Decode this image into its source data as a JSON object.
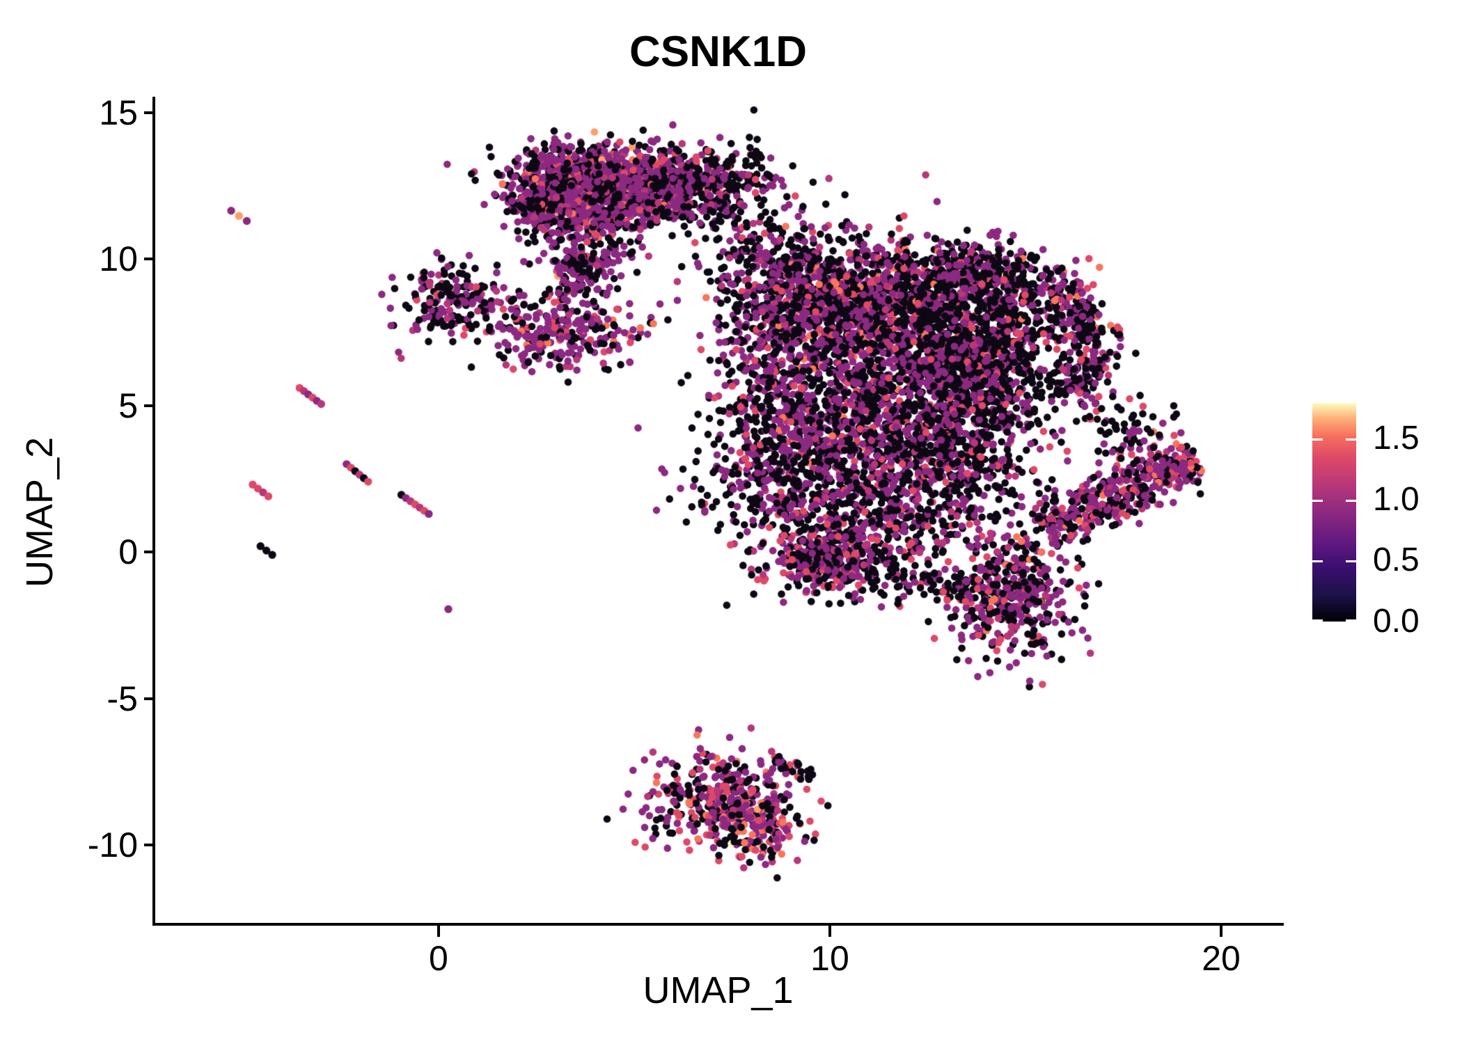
{
  "chart_data": {
    "type": "scatter",
    "title": "CSNK1D",
    "xlabel": "UMAP_1",
    "ylabel": "UMAP_2",
    "x_range": [
      -7.24,
      21.53
    ],
    "y_range": [
      -12.66,
      15.54
    ],
    "x_ticks": [
      {
        "value": 0,
        "label": "0"
      },
      {
        "value": 10,
        "label": "10"
      },
      {
        "value": 20,
        "label": "20"
      }
    ],
    "y_ticks": [
      {
        "value": 15,
        "label": "15"
      },
      {
        "value": 10,
        "label": "10"
      },
      {
        "value": 5,
        "label": "5"
      },
      {
        "value": 0,
        "label": "0"
      },
      {
        "value": -5,
        "label": "-5"
      },
      {
        "value": -10,
        "label": "-10"
      }
    ],
    "grid": false,
    "legend_position": "right",
    "legend": {
      "colormap": "magma",
      "domain": [
        0,
        1.79
      ],
      "ticks": [
        {
          "value": 0.0,
          "label": "0.0"
        },
        {
          "value": 0.5,
          "label": "0.5"
        },
        {
          "value": 1.0,
          "label": "1.0"
        },
        {
          "value": 1.5,
          "label": "1.5"
        }
      ],
      "gradient": [
        [
          0,
          "#000004"
        ],
        [
          0.12,
          "#1d1147"
        ],
        [
          0.25,
          "#3b0f70"
        ],
        [
          0.37,
          "#641a80"
        ],
        [
          0.5,
          "#8c2981"
        ],
        [
          0.62,
          "#b73779"
        ],
        [
          0.75,
          "#de4968"
        ],
        [
          0.85,
          "#f7705c"
        ],
        [
          0.93,
          "#feb078"
        ],
        [
          1,
          "#fcfdbf"
        ]
      ]
    },
    "point_radius_px": 5.3,
    "palette": {
      "black": "#0d0814",
      "indigo": "#4a1079",
      "purple": "#8c2981",
      "magenta": "#b73779",
      "pink": "#de4968",
      "salmon": "#f8765c",
      "orange": "#fc9f6d",
      "cream": "#fcfdbf"
    },
    "mixes": {
      "top": {
        "black": 40,
        "purple": 44,
        "magenta": 7,
        "pink": 6,
        "salmon": 2,
        "orange": 1
      },
      "top2": {
        "black": 34,
        "purple": 50,
        "magenta": 7,
        "pink": 6,
        "salmon": 2,
        "orange": 1
      },
      "sparseDark": {
        "black": 62,
        "purple": 30,
        "magenta": 4,
        "pink": 4
      },
      "leftA": {
        "black": 48,
        "purple": 36,
        "magenta": 8,
        "pink": 8
      },
      "leftB": {
        "black": 28,
        "purple": 48,
        "magenta": 10,
        "pink": 10,
        "salmon": 4
      },
      "mixA": {
        "black": 46,
        "purple": 38,
        "magenta": 7,
        "pink": 7,
        "salmon": 2
      },
      "darkA": {
        "black": 58,
        "purple": 26,
        "magenta": 6,
        "pink": 8,
        "salmon": 2
      },
      "darkB": {
        "black": 70,
        "purple": 21,
        "magenta": 4,
        "pink": 5
      },
      "darkC": {
        "black": 54,
        "purple": 33,
        "magenta": 6,
        "pink": 7
      },
      "lobeA": {
        "black": 42,
        "purple": 42,
        "magenta": 8,
        "pink": 8
      },
      "lobeB": {
        "black": 46,
        "purple": 36,
        "magenta": 7,
        "pink": 9,
        "salmon": 2
      },
      "hook": {
        "black": 55,
        "purple": 35,
        "magenta": 3,
        "pink": 5,
        "salmon": 2
      },
      "neck": {
        "black": 70,
        "purple": 25,
        "pink": 5
      },
      "wing": {
        "black": 33,
        "purple": 42,
        "magenta": 12,
        "pink": 10,
        "salmon": 3
      },
      "bottom": {
        "black": 30,
        "purple": 34,
        "magenta": 12,
        "pink": 14,
        "salmon": 8,
        "orange": 2
      },
      "bottomTip": {
        "black": 21,
        "purple": 30,
        "magenta": 14,
        "pink": 16,
        "salmon": 14,
        "orange": 4,
        "cream": 1
      },
      "tail": {
        "black": 60,
        "purple": 25,
        "pink": 15
      }
    },
    "clusters": [
      {
        "name": "top-main-west",
        "type": "gauss",
        "cx": 3.5,
        "cy": 12.9,
        "sdx": 1.0,
        "sdy": 0.55,
        "n": 480,
        "mix": "top"
      },
      {
        "name": "top-main-east",
        "type": "gauss",
        "cx": 5.5,
        "cy": 12.5,
        "sdx": 1.0,
        "sdy": 0.6,
        "n": 430,
        "mix": "top"
      },
      {
        "name": "top-core",
        "type": "gauss",
        "cx": 4.4,
        "cy": 12.0,
        "sdx": 1.2,
        "sdy": 0.6,
        "n": 380,
        "mix": "top2"
      },
      {
        "name": "top-left-tip",
        "type": "gauss",
        "cx": 2.8,
        "cy": 11.7,
        "sdx": 0.55,
        "sdy": 0.5,
        "n": 150,
        "mix": "top"
      },
      {
        "name": "top-right-spray",
        "type": "gauss",
        "cx": 6.7,
        "cy": 12.4,
        "sdx": 0.85,
        "sdy": 0.75,
        "n": 140,
        "mix": "sparseDark"
      },
      {
        "name": "top-ne-spray",
        "type": "gauss",
        "cx": 7.9,
        "cy": 12.9,
        "sdx": 0.75,
        "sdy": 0.6,
        "n": 60,
        "mix": "sparseDark"
      },
      {
        "name": "top-tail",
        "type": "gauss",
        "cx": 3.9,
        "cy": 10.4,
        "sdx": 0.55,
        "sdy": 0.8,
        "n": 150,
        "mix": "top2"
      },
      {
        "name": "top-tail-sparse",
        "type": "gauss",
        "cx": 3.4,
        "cy": 9.4,
        "sdx": 0.5,
        "sdy": 0.55,
        "n": 70,
        "mix": "top2"
      },
      {
        "name": "left-blob",
        "type": "gauss",
        "cx": 0.35,
        "cy": 8.6,
        "sdx": 0.72,
        "sdy": 0.72,
        "n": 180,
        "mix": "leftA"
      },
      {
        "name": "mid-blob",
        "type": "gauss",
        "cx": 3.3,
        "cy": 7.5,
        "sdx": 1.0,
        "sdy": 0.62,
        "n": 260,
        "mix": "leftB"
      },
      {
        "name": "bridge",
        "type": "gauss",
        "cx": 8.3,
        "cy": 10.4,
        "sdx": 0.8,
        "sdy": 0.7,
        "n": 110,
        "mix": "sparseDark"
      },
      {
        "name": "main-nw",
        "type": "gauss",
        "cx": 9.6,
        "cy": 8.7,
        "sdx": 1.15,
        "sdy": 1.0,
        "n": 620,
        "mix": "mixA"
      },
      {
        "name": "main-n",
        "type": "gauss",
        "cx": 12.1,
        "cy": 8.7,
        "sdx": 1.5,
        "sdy": 1.05,
        "n": 900,
        "mix": "darkA"
      },
      {
        "name": "main-core-e",
        "type": "gauss",
        "cx": 13.8,
        "cy": 6.3,
        "sdx": 1.05,
        "sdy": 1.3,
        "n": 850,
        "mix": "darkB"
      },
      {
        "name": "main-center",
        "type": "gauss",
        "cx": 11.0,
        "cy": 5.7,
        "sdx": 1.6,
        "sdy": 1.35,
        "n": 900,
        "mix": "mixA"
      },
      {
        "name": "main-w-edge",
        "type": "gauss",
        "cx": 8.5,
        "cy": 6.2,
        "sdx": 0.65,
        "sdy": 1.5,
        "n": 200,
        "mix": "darkC"
      },
      {
        "name": "main-sw-spray",
        "type": "gauss",
        "cx": 7.9,
        "cy": 3.0,
        "sdx": 0.85,
        "sdy": 1.5,
        "n": 140,
        "mix": "sparseDark"
      },
      {
        "name": "main-s-center",
        "type": "gauss",
        "cx": 9.4,
        "cy": 3.1,
        "sdx": 0.95,
        "sdy": 1.1,
        "n": 320,
        "mix": "mixA"
      },
      {
        "name": "main-se-fill",
        "type": "gauss",
        "cx": 12.7,
        "cy": 3.3,
        "sdx": 1.35,
        "sdy": 0.95,
        "n": 470,
        "mix": "darkC"
      },
      {
        "name": "main-s",
        "type": "gauss",
        "cx": 11.4,
        "cy": 1.3,
        "sdx": 1.5,
        "sdy": 0.95,
        "n": 430,
        "mix": "darkC"
      },
      {
        "name": "sw-lobe",
        "type": "gauss",
        "cx": 10.1,
        "cy": -0.35,
        "sdx": 0.9,
        "sdy": 0.62,
        "n": 330,
        "mix": "lobeA"
      },
      {
        "name": "lobe-neck",
        "type": "gauss",
        "cx": 12.5,
        "cy": -1.0,
        "sdx": 0.8,
        "sdy": 0.35,
        "n": 70,
        "mix": "neck"
      },
      {
        "name": "se-lobe",
        "type": "gauss",
        "cx": 14.7,
        "cy": -1.5,
        "sdx": 0.8,
        "sdy": 1.05,
        "n": 420,
        "mix": "lobeB"
      },
      {
        "name": "hook-crescent",
        "type": "arc",
        "cx": 13.9,
        "cy": 7.0,
        "r": 2.7,
        "a0": 1.95,
        "a1": -0.66,
        "w": 0.42,
        "n": 430,
        "mix": "hook"
      },
      {
        "name": "hook-bay",
        "type": "gauss",
        "cx": 14.6,
        "cy": 8.0,
        "sdx": 0.6,
        "sdy": 0.8,
        "n": 70,
        "mix": "sparseDark"
      },
      {
        "name": "right-wing",
        "type": "band",
        "from": [
          15.45,
          0.75
        ],
        "to": [
          19.35,
          3.25
        ],
        "w": 0.42,
        "n": 430,
        "mix": "wing"
      },
      {
        "name": "wing-tip-spray",
        "type": "gauss",
        "cx": 17.6,
        "cy": 4.2,
        "sdx": 0.7,
        "sdy": 0.5,
        "n": 60,
        "mix": "sparseDark"
      },
      {
        "name": "bottom-cluster",
        "type": "gauss",
        "cx": 7.2,
        "cy": -8.4,
        "sdx": 0.95,
        "sdy": 0.8,
        "n": 400,
        "mix": "bottom"
      },
      {
        "name": "bottom-tip",
        "type": "gauss",
        "cx": 8.3,
        "cy": -9.7,
        "sdx": 0.5,
        "sdy": 0.45,
        "n": 100,
        "mix": "bottomTip"
      },
      {
        "name": "bottom-tail",
        "type": "band",
        "from": [
          8.55,
          -7.1
        ],
        "to": [
          9.6,
          -7.7
        ],
        "w": 0.15,
        "n": 30,
        "mix": "tail"
      }
    ],
    "streaks": [
      {
        "name": "streak-1",
        "from": [
          -5.3,
          11.65
        ],
        "to": [
          -4.9,
          11.3
        ],
        "colors": [
          "purple",
          "orange",
          "purple"
        ]
      },
      {
        "name": "streak-2",
        "from": [
          -3.55,
          5.6
        ],
        "to": [
          -3.0,
          5.05
        ],
        "colors": [
          "pink",
          "magenta",
          "purple",
          "pink",
          "purple",
          "magenta"
        ]
      },
      {
        "name": "streak-3",
        "from": [
          -4.75,
          2.3
        ],
        "to": [
          -4.35,
          1.9
        ],
        "colors": [
          "pink",
          "pink",
          "magenta",
          "pink"
        ]
      },
      {
        "name": "streak-4",
        "from": [
          -2.35,
          3.0
        ],
        "to": [
          -1.8,
          2.4
        ],
        "colors": [
          "purple",
          "pink",
          "black",
          "magenta",
          "black",
          "pink"
        ]
      },
      {
        "name": "streak-5",
        "from": [
          -0.95,
          1.95
        ],
        "to": [
          -0.25,
          1.3
        ],
        "colors": [
          "black",
          "purple",
          "magenta",
          "pink",
          "magenta",
          "pink",
          "purple"
        ]
      },
      {
        "name": "streak-6",
        "from": [
          -4.55,
          0.2
        ],
        "to": [
          -4.25,
          -0.1
        ],
        "colors": [
          "black",
          "black",
          "black"
        ]
      },
      {
        "name": "streak-7",
        "from": [
          0.25,
          -1.95
        ],
        "to": [
          0.25,
          -1.95
        ],
        "colors": [
          "purple"
        ]
      }
    ]
  }
}
